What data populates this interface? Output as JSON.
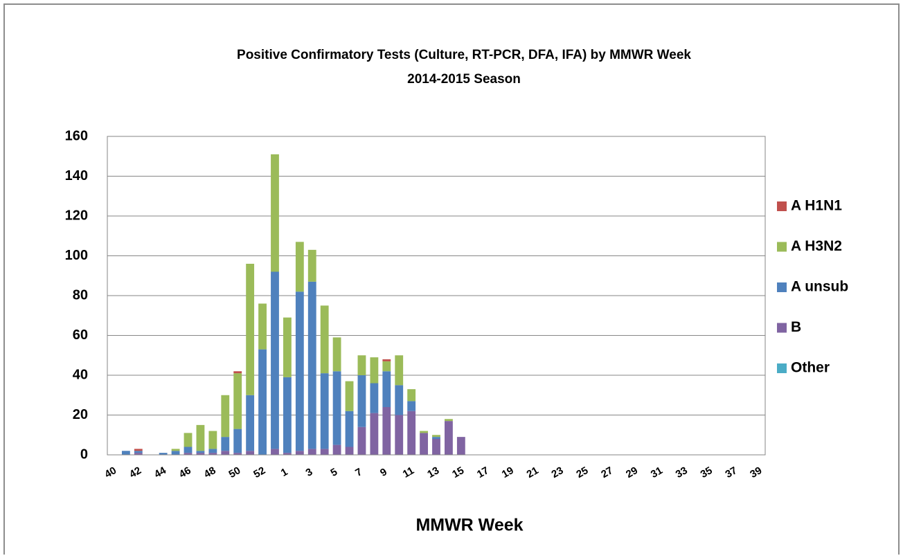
{
  "chart_data": {
    "type": "stacked-bar",
    "title": "Positive Confirmatory Tests (Culture, RT-PCR, DFA, IFA) by MMWR Week",
    "subtitle": "2014-2015 Season",
    "x_label": "MMWR Week",
    "categories": [
      "40",
      null,
      "42",
      null,
      "44",
      null,
      "46",
      null,
      "48",
      null,
      "50",
      null,
      "52",
      null,
      "1",
      null,
      "3",
      null,
      "5",
      null,
      "7",
      null,
      "9",
      null,
      "11",
      null,
      "13",
      null,
      "15",
      null,
      "17",
      null,
      "19",
      null,
      "21",
      null,
      "23",
      null,
      "25",
      null,
      "27",
      null,
      "29",
      null,
      "31",
      null,
      "33",
      null,
      "35",
      null,
      "37",
      null,
      "39"
    ],
    "series": [
      {
        "name": "A H1N1",
        "color": "#c0504d",
        "values": [
          0,
          0,
          1,
          0,
          0,
          0,
          0,
          0,
          0,
          0,
          1,
          0,
          0,
          0,
          0,
          0,
          0,
          0,
          0,
          0,
          0,
          0,
          1,
          0,
          0,
          0,
          0,
          0,
          0,
          0,
          0,
          0,
          0,
          0,
          0,
          0,
          0,
          0,
          0,
          0,
          0,
          0,
          0,
          0,
          0,
          0,
          0,
          0,
          0,
          0,
          0,
          0,
          0
        ]
      },
      {
        "name": "A H3N2",
        "color": "#9bbb59",
        "values": [
          0,
          0,
          0,
          0,
          0,
          1,
          7,
          13,
          9,
          21,
          28,
          66,
          23,
          59,
          30,
          25,
          16,
          34,
          17,
          15,
          10,
          13,
          5,
          15,
          6,
          1,
          1,
          1,
          0,
          0,
          0,
          0,
          0,
          0,
          0,
          0,
          0,
          0,
          0,
          0,
          0,
          0,
          0,
          0,
          0,
          0,
          0,
          0,
          0,
          0,
          0,
          0,
          0
        ]
      },
      {
        "name": "A unsub",
        "color": "#4f81bd",
        "values": [
          0,
          2,
          1,
          0,
          1,
          2,
          3,
          1,
          2,
          7,
          12,
          28,
          53,
          89,
          38,
          80,
          84,
          38,
          37,
          18,
          26,
          15,
          18,
          15,
          5,
          0,
          1,
          0,
          0,
          0,
          0,
          0,
          0,
          0,
          0,
          0,
          0,
          0,
          0,
          0,
          0,
          0,
          0,
          0,
          0,
          0,
          0,
          0,
          0,
          0,
          0,
          0,
          0
        ]
      },
      {
        "name": "B",
        "color": "#8064a2",
        "values": [
          0,
          0,
          1,
          0,
          0,
          0,
          1,
          1,
          1,
          2,
          1,
          2,
          0,
          3,
          1,
          2,
          3,
          3,
          5,
          4,
          14,
          21,
          24,
          20,
          22,
          11,
          8,
          17,
          9,
          0,
          0,
          0,
          0,
          0,
          0,
          0,
          0,
          0,
          0,
          0,
          0,
          0,
          0,
          0,
          0,
          0,
          0,
          0,
          0,
          0,
          0,
          0,
          0
        ]
      },
      {
        "name": "Other",
        "color": "#4bacc6",
        "values": [
          0,
          0,
          0,
          0,
          0,
          0,
          0,
          0,
          0,
          0,
          0,
          0,
          0,
          0,
          0,
          0,
          0,
          0,
          0,
          0,
          0,
          0,
          0,
          0,
          0,
          0,
          0,
          0,
          0,
          0,
          0,
          0,
          0,
          0,
          0,
          0,
          0,
          0,
          0,
          0,
          0,
          0,
          0,
          0,
          0,
          0,
          0,
          0,
          0,
          0,
          0,
          0,
          0
        ]
      }
    ],
    "ylim": [
      0,
      160
    ],
    "yticks": [
      0,
      20,
      40,
      60,
      80,
      100,
      120,
      140,
      160
    ],
    "grid": true,
    "legend": "right"
  }
}
